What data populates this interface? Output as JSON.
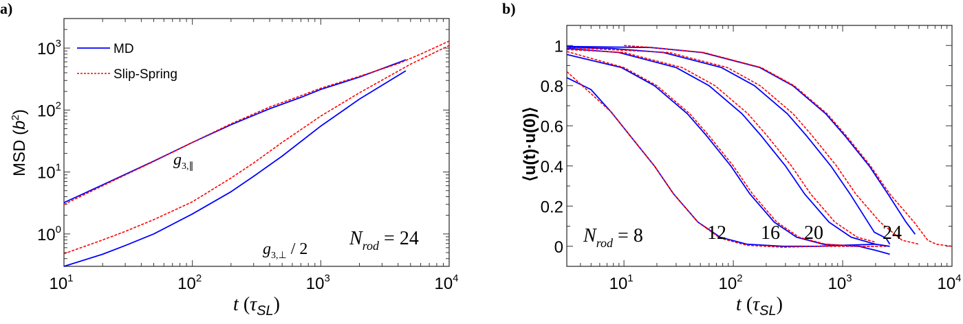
{
  "colors": {
    "md": "#0000ff",
    "slip_spring": "#ff0000",
    "axis": "#333333"
  },
  "chart_data": [
    {
      "panel_label": "a)",
      "type": "line",
      "xscale": "log",
      "yscale": "log",
      "xlim": [
        10,
        10000
      ],
      "ylim": [
        0.3,
        3000
      ],
      "xticks": [
        10,
        100,
        1000,
        10000
      ],
      "xtick_labels": [
        [
          "10",
          "1"
        ],
        [
          "10",
          "2"
        ],
        [
          "10",
          "3"
        ],
        [
          "10",
          "4"
        ]
      ],
      "yticks": [
        1,
        10,
        100,
        1000
      ],
      "ytick_labels": [
        [
          "10",
          "0"
        ],
        [
          "10",
          "1"
        ],
        [
          "10",
          "2"
        ],
        [
          "10",
          "3"
        ]
      ],
      "xlabel": {
        "main": "t",
        "open": " (",
        "tau": "τ",
        "sub": "SL",
        "close": ")"
      },
      "ylabel": {
        "main": "MSD (",
        "b": "b",
        "sup": "2",
        "close": ")"
      },
      "legend": {
        "placement": "top-left",
        "entries": [
          "MD",
          "Slip-Spring"
        ]
      },
      "annotations": {
        "g_par": {
          "g": "g",
          "sub": "3,∥"
        },
        "g_perp": {
          "g": "g",
          "sub": "3,⊥",
          "rest": " / 2"
        },
        "nrod": {
          "n": "N",
          "sub": "rod",
          "rest": " = 24"
        }
      },
      "series": [
        {
          "name": "MD",
          "curve": "g_par",
          "style": "solid",
          "points": [
            [
              10,
              3.2
            ],
            [
              20,
              6.2
            ],
            [
              50,
              15
            ],
            [
              100,
              30
            ],
            [
              200,
              58
            ],
            [
              400,
              105
            ],
            [
              700,
              160
            ],
            [
              1000,
              215
            ],
            [
              2000,
              340
            ],
            [
              4000,
              580
            ],
            [
              4600,
              650
            ]
          ]
        },
        {
          "name": "Slip-Spring",
          "curve": "g_par",
          "style": "dashed",
          "points": [
            [
              10,
              3.0
            ],
            [
              20,
              6.0
            ],
            [
              50,
              14.8
            ],
            [
              100,
              30
            ],
            [
              200,
              60
            ],
            [
              400,
              112
            ],
            [
              700,
              170
            ],
            [
              1000,
              225
            ],
            [
              2000,
              350
            ],
            [
              4000,
              560
            ],
            [
              6000,
              800
            ],
            [
              10000,
              1300
            ]
          ]
        },
        {
          "name": "MD",
          "curve": "g_perp",
          "style": "solid",
          "points": [
            [
              10,
              0.3
            ],
            [
              20,
              0.47
            ],
            [
              30,
              0.65
            ],
            [
              50,
              1.0
            ],
            [
              100,
              2.1
            ],
            [
              200,
              4.8
            ],
            [
              300,
              8.5
            ],
            [
              500,
              18
            ],
            [
              1000,
              55
            ],
            [
              2000,
              150
            ],
            [
              4600,
              430
            ]
          ]
        },
        {
          "name": "Slip-Spring",
          "curve": "g_perp",
          "style": "dashed",
          "points": [
            [
              10,
              0.48
            ],
            [
              20,
              0.8
            ],
            [
              30,
              1.1
            ],
            [
              50,
              1.7
            ],
            [
              100,
              3.3
            ],
            [
              200,
              8
            ],
            [
              300,
              14
            ],
            [
              500,
              30
            ],
            [
              1000,
              80
            ],
            [
              2000,
              190
            ],
            [
              5000,
              550
            ],
            [
              10000,
              1100
            ]
          ]
        }
      ]
    },
    {
      "panel_label": "b)",
      "type": "line",
      "xscale": "log",
      "yscale": "linear",
      "xlim": [
        3,
        10000
      ],
      "ylim": [
        -0.1,
        1.1
      ],
      "xticks": [
        10,
        100,
        1000,
        10000
      ],
      "xtick_labels": [
        [
          "10",
          "1"
        ],
        [
          "10",
          "2"
        ],
        [
          "10",
          "3"
        ],
        [
          "10",
          "4"
        ]
      ],
      "yticks": [
        0,
        0.2,
        0.4,
        0.6,
        0.8,
        1
      ],
      "ytick_labels": [
        "0",
        "0.2",
        "0.4",
        "0.6",
        "0.8",
        "1"
      ],
      "xlabel": {
        "main": "t",
        "open": " (",
        "tau": "τ",
        "sub": "SL",
        "close": ")"
      },
      "ylabel": {
        "text": "⟨u(t)·u(0)⟩"
      },
      "annotations": {
        "nrod": {
          "n": "N",
          "sub": "rod",
          "rest": " = 8"
        },
        "labels": [
          "12",
          "16",
          "20",
          "24"
        ]
      },
      "series": [
        {
          "name": "MD",
          "N": 8,
          "style": "solid",
          "points": [
            [
              3,
              0.84
            ],
            [
              5,
              0.78
            ],
            [
              7.6,
              0.67
            ],
            [
              11.4,
              0.55
            ],
            [
              19,
              0.4
            ],
            [
              28.5,
              0.26
            ],
            [
              47.5,
              0.12
            ],
            [
              76,
              0.045
            ],
            [
              133,
              0.01
            ],
            [
              285,
              0.0
            ],
            [
              600,
              0.0
            ],
            [
              1000,
              0.005
            ],
            [
              2000,
              0.01
            ]
          ]
        },
        {
          "name": "Slip-Spring",
          "N": 8,
          "style": "dashed",
          "points": [
            [
              3,
              0.87
            ],
            [
              7.6,
              0.67
            ],
            [
              11.4,
              0.55
            ],
            [
              19,
              0.4
            ],
            [
              28.5,
              0.26
            ],
            [
              47.5,
              0.12
            ],
            [
              76,
              0.04
            ],
            [
              133,
              0.005
            ],
            [
              285,
              -0.005
            ],
            [
              600,
              0.0
            ],
            [
              2000,
              0.0
            ]
          ]
        },
        {
          "name": "MD",
          "N": 12,
          "style": "solid",
          "points": [
            [
              3,
              0.955
            ],
            [
              9.5,
              0.89
            ],
            [
              19,
              0.8
            ],
            [
              38,
              0.66
            ],
            [
              57,
              0.55
            ],
            [
              95,
              0.4
            ],
            [
              142,
              0.26
            ],
            [
              237,
              0.12
            ],
            [
              380,
              0.045
            ],
            [
              665,
              0.01
            ],
            [
              1400,
              0.0
            ],
            [
              2000,
              -0.02
            ],
            [
              2700,
              -0.04
            ]
          ]
        },
        {
          "name": "Slip-Spring",
          "N": 12,
          "style": "dashed",
          "points": [
            [
              3,
              0.97
            ],
            [
              10,
              0.89
            ],
            [
              20,
              0.8
            ],
            [
              40,
              0.66
            ],
            [
              60,
              0.55
            ],
            [
              100,
              0.4
            ],
            [
              150,
              0.26
            ],
            [
              250,
              0.12
            ],
            [
              400,
              0.045
            ],
            [
              700,
              0.01
            ],
            [
              1500,
              0.0
            ],
            [
              2500,
              0.0
            ]
          ]
        },
        {
          "name": "MD",
          "N": 16,
          "style": "solid",
          "points": [
            [
              3,
              0.985
            ],
            [
              9,
              0.965
            ],
            [
              30,
              0.89
            ],
            [
              60,
              0.8
            ],
            [
              120,
              0.66
            ],
            [
              180,
              0.55
            ],
            [
              300,
              0.4
            ],
            [
              450,
              0.26
            ],
            [
              750,
              0.12
            ],
            [
              1200,
              0.045
            ],
            [
              2000,
              0.01
            ],
            [
              2700,
              0.0
            ]
          ]
        },
        {
          "name": "Slip-Spring",
          "N": 16,
          "style": "dashed",
          "points": [
            [
              3,
              0.98
            ],
            [
              10,
              0.965
            ],
            [
              34,
              0.89
            ],
            [
              68,
              0.8
            ],
            [
              136,
              0.66
            ],
            [
              204,
              0.55
            ],
            [
              340,
              0.4
            ],
            [
              510,
              0.26
            ],
            [
              850,
              0.12
            ],
            [
              1360,
              0.045
            ],
            [
              2000,
              0.02
            ]
          ]
        },
        {
          "name": "MD",
          "N": 20,
          "style": "solid",
          "points": [
            [
              3,
              0.99
            ],
            [
              7.8,
              0.985
            ],
            [
              23,
              0.965
            ],
            [
              78,
              0.89
            ],
            [
              156,
              0.8
            ],
            [
              312,
              0.66
            ],
            [
              468,
              0.55
            ],
            [
              780,
              0.4
            ],
            [
              1170,
              0.26
            ],
            [
              1950,
              0.07
            ],
            [
              2500,
              0.04
            ],
            [
              2700,
              0.01
            ]
          ]
        },
        {
          "name": "Slip-Spring",
          "N": 20,
          "style": "dashed",
          "points": [
            [
              3,
              0.99
            ],
            [
              26,
              0.965
            ],
            [
              88,
              0.89
            ],
            [
              176,
              0.8
            ],
            [
              352,
              0.66
            ],
            [
              528,
              0.55
            ],
            [
              880,
              0.4
            ],
            [
              1320,
              0.26
            ],
            [
              2200,
              0.12
            ],
            [
              3500,
              0.03
            ],
            [
              5000,
              0.01
            ]
          ]
        },
        {
          "name": "MD",
          "N": 24,
          "style": "solid",
          "points": [
            [
              3,
              0.995
            ],
            [
              17.5,
              0.99
            ],
            [
              52,
              0.965
            ],
            [
              175,
              0.89
            ],
            [
              350,
              0.8
            ],
            [
              700,
              0.66
            ],
            [
              1050,
              0.55
            ],
            [
              1750,
              0.4
            ],
            [
              2600,
              0.26
            ],
            [
              3800,
              0.12
            ],
            [
              4600,
              0.06
            ]
          ]
        },
        {
          "name": "Slip-Spring",
          "N": 24,
          "style": "dashed",
          "points": [
            [
              10,
              1.0
            ],
            [
              18,
              0.99
            ],
            [
              54,
              0.965
            ],
            [
              180,
              0.89
            ],
            [
              360,
              0.8
            ],
            [
              720,
              0.66
            ],
            [
              1080,
              0.55
            ],
            [
              1800,
              0.4
            ],
            [
              2700,
              0.26
            ],
            [
              4500,
              0.12
            ],
            [
              6000,
              0.03
            ],
            [
              7200,
              0.01
            ],
            [
              10000,
              0.0
            ]
          ]
        }
      ]
    }
  ]
}
